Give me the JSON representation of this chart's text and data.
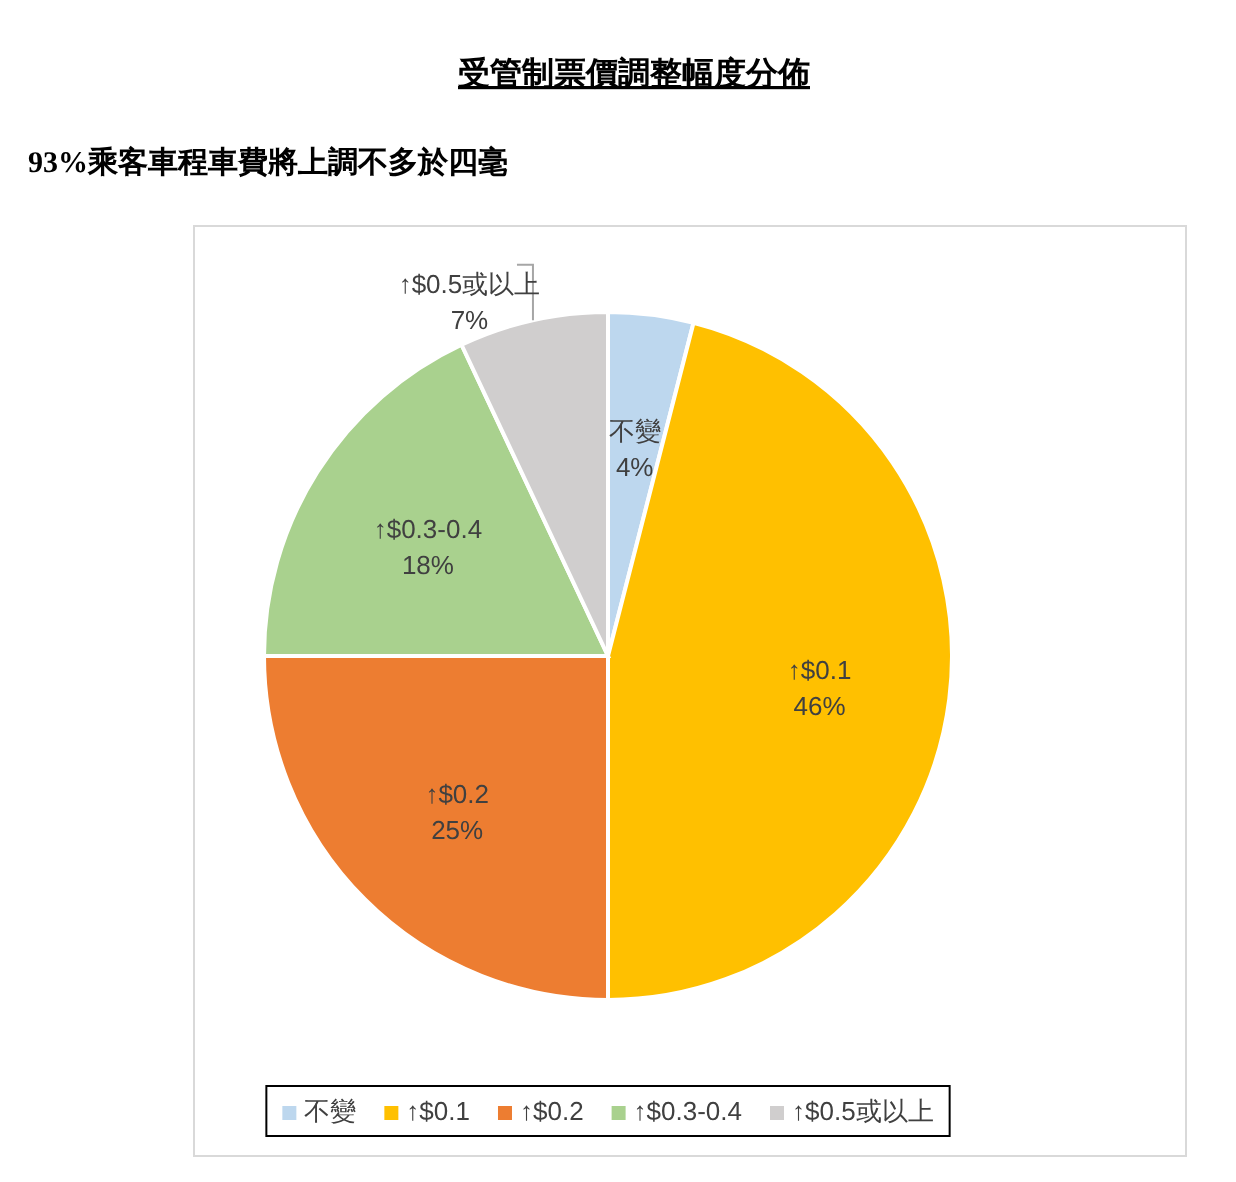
{
  "chart_data": {
    "type": "pie",
    "title": "受管制票價調整幅度分佈",
    "subtitle": "93%乘客車程車費將上調不多於四毫",
    "categories": [
      "不變",
      "↑$0.1",
      "↑$0.2",
      "↑$0.3-0.4",
      "↑$0.5或以上"
    ],
    "values": [
      4,
      46,
      25,
      18,
      7
    ],
    "colors": [
      "#bdd7ee",
      "#ffc000",
      "#ed7d31",
      "#a9d18e",
      "#d0cece"
    ],
    "value_labels": [
      "4%",
      "46%",
      "25%",
      "18%",
      "7%"
    ],
    "legend": "bottom"
  }
}
